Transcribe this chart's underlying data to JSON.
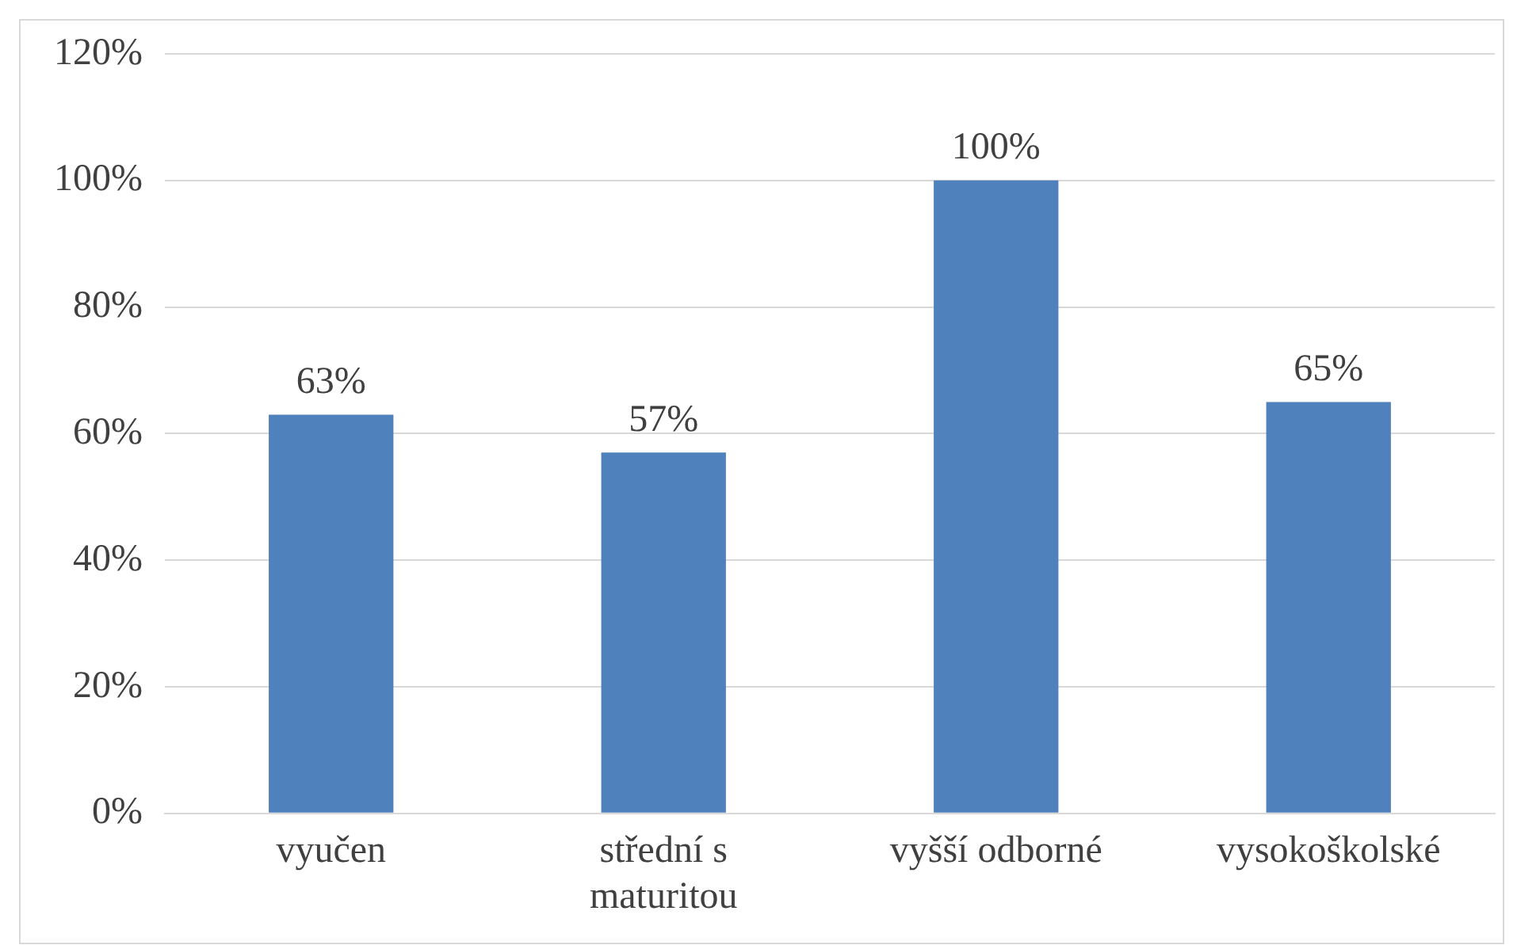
{
  "chart_data": {
    "type": "bar",
    "categories": [
      "vyučen",
      "střední s maturitou",
      "vyšší odborné",
      "vysokoškolské"
    ],
    "values": [
      63,
      57,
      100,
      65
    ],
    "color": "#4f81bd",
    "value_labels": [
      "63%",
      "57%",
      "100%",
      "65%"
    ],
    "ylim": [
      0,
      120
    ],
    "yticks": [
      {
        "value": 0,
        "label": "0%"
      },
      {
        "value": 20,
        "label": "20%"
      },
      {
        "value": 40,
        "label": "40%"
      },
      {
        "value": 60,
        "label": "60%"
      },
      {
        "value": 80,
        "label": "80%"
      },
      {
        "value": 100,
        "label": "100%"
      },
      {
        "value": 120,
        "label": "120%"
      }
    ],
    "grid": "y",
    "legend": false
  }
}
